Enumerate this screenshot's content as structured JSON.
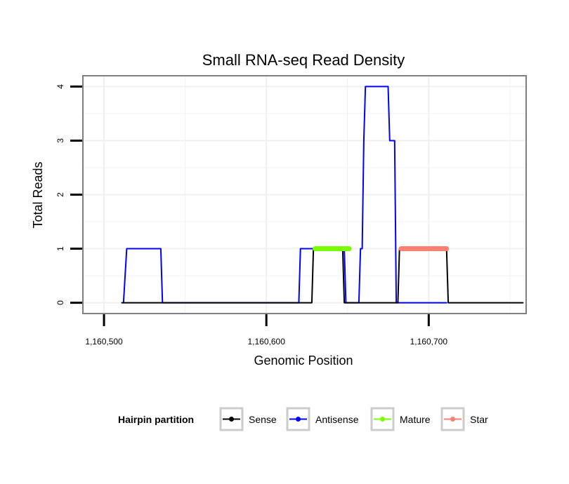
{
  "chart_data": {
    "type": "line",
    "title": "Small RNA-seq Read Density",
    "xlabel": "Genomic Position",
    "ylabel": "Total Reads",
    "xlim": [
      1160487,
      1160760
    ],
    "ylim": [
      -0.2,
      4.2
    ],
    "x_ticks": [
      1160500,
      1160600,
      1160700
    ],
    "x_tick_labels": [
      "1,160,500",
      "1,160,600",
      "1,160,700"
    ],
    "y_ticks": [
      0,
      1,
      2,
      3,
      4
    ],
    "y_tick_labels": [
      "0",
      "1",
      "2",
      "3",
      "4"
    ],
    "grid": true,
    "legend": {
      "title": "Hairpin partition",
      "position": "bottom",
      "entries": [
        {
          "label": "Sense",
          "color": "#000000"
        },
        {
          "label": "Antisense",
          "color": "#0000ff"
        },
        {
          "label": "Mature",
          "color": "#7cfc00"
        },
        {
          "label": "Star",
          "color": "#fa8072"
        }
      ]
    },
    "series": [
      {
        "name": "Antisense",
        "color": "#0000ff",
        "width": 2,
        "x": [
          1160512,
          1160514,
          1160535,
          1160536,
          1160620,
          1160621,
          1160648,
          1160649,
          1160657,
          1160658,
          1160659,
          1160660,
          1160661,
          1160673,
          1160675,
          1160676,
          1160679,
          1160680,
          1160711
        ],
        "y": [
          0,
          1,
          1,
          0,
          0,
          1,
          1,
          0,
          0,
          1,
          1,
          3,
          4,
          4,
          4,
          3,
          3,
          0,
          0
        ]
      },
      {
        "name": "Sense",
        "color": "#000000",
        "width": 2,
        "x": [
          1160511,
          1160628,
          1160629,
          1160647,
          1160648,
          1160681,
          1160682,
          1160711,
          1160712,
          1160758
        ],
        "y": [
          0,
          0,
          1,
          1,
          0,
          0,
          1,
          1,
          0,
          0
        ]
      },
      {
        "name": "Mature",
        "color": "#7cfc00",
        "width": 7,
        "x": [
          1160630,
          1160651
        ],
        "y": [
          1,
          1
        ]
      },
      {
        "name": "Star",
        "color": "#fa8072",
        "width": 7,
        "x": [
          1160683,
          1160711
        ],
        "y": [
          1,
          1
        ]
      }
    ]
  }
}
